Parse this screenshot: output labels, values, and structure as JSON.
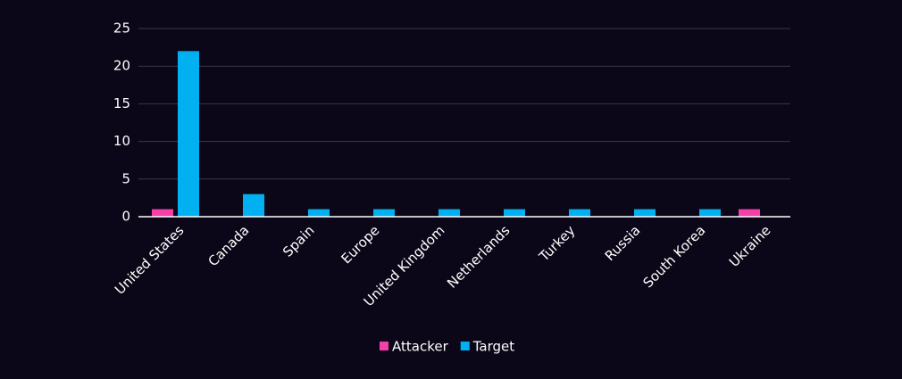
{
  "chart_data": {
    "type": "bar",
    "categories": [
      "United States",
      "Canada",
      "Spain",
      "Europe",
      "United Kingdom",
      "Netherlands",
      "Turkey",
      "Russia",
      "South Korea",
      "Ukraine"
    ],
    "series": [
      {
        "name": "Attacker",
        "color": "#f53fa9",
        "values": [
          1,
          0,
          0,
          0,
          0,
          0,
          0,
          0,
          0,
          1
        ]
      },
      {
        "name": "Target",
        "color": "#00b0f0",
        "values": [
          22,
          3,
          1,
          1,
          1,
          1,
          1,
          1,
          1,
          0
        ]
      }
    ],
    "ylim": [
      0,
      25
    ],
    "yticks": [
      0,
      5,
      10,
      15,
      20,
      25
    ],
    "grid": true,
    "legend": "bottom"
  }
}
